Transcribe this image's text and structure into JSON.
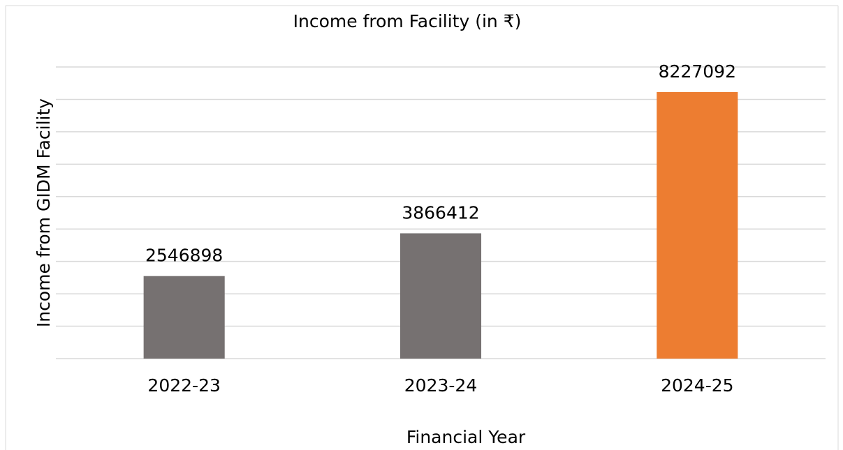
{
  "chart_data": {
    "type": "bar",
    "title": "Income from Facility (in ₹)",
    "x_label": "Financial Year",
    "y_label": "Income from GIDM Facility",
    "categories": [
      "2022-23",
      "2023-24",
      "2024-25"
    ],
    "values": [
      2546898,
      3866412,
      8227092
    ],
    "colors": [
      "#767171",
      "#767171",
      "#ed7d31"
    ],
    "ylim": [
      0,
      9000000
    ],
    "yticks": [
      0,
      1000000,
      2000000,
      3000000,
      4000000,
      5000000,
      6000000,
      7000000,
      8000000,
      9000000
    ],
    "grid": true
  }
}
